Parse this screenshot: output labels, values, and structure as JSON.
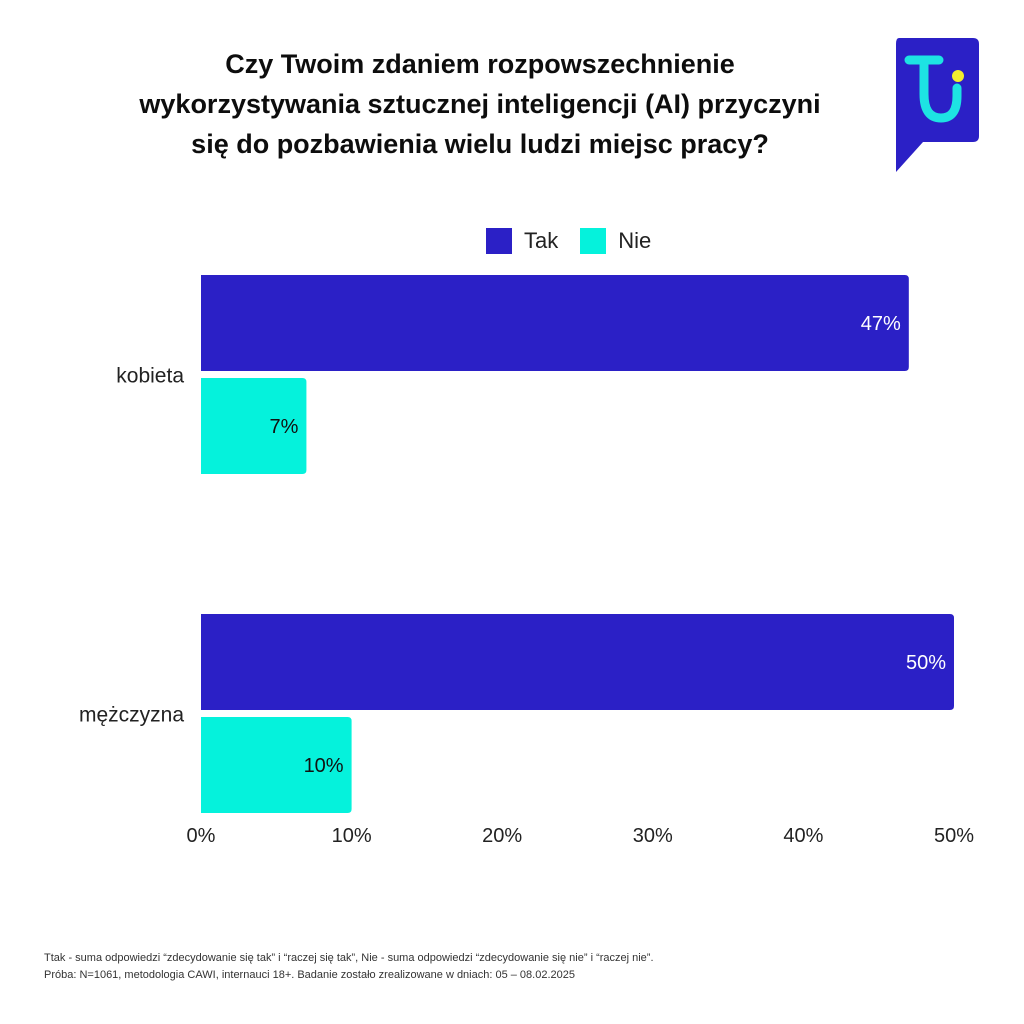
{
  "title_lines": [
    "Czy Twoim zdaniem rozpowszechnienie",
    "wykorzystywania sztucznej inteligencji (AI) przyczyni",
    "się do pozbawienia wielu ludzi miejsc pracy?"
  ],
  "colors": {
    "tak": "#2b20c6",
    "nie": "#05f2dc",
    "logo_bg": "#2b20c6",
    "logo_mark": "#1de3e3",
    "logo_dot": "#f2ee2e"
  },
  "legend": {
    "tak_label": "Tak",
    "nie_label": "Nie"
  },
  "chart_data": {
    "type": "bar",
    "orientation": "horizontal",
    "categories": [
      "kobieta",
      "mężczyzna"
    ],
    "series": [
      {
        "name": "Tak",
        "values": [
          47,
          50
        ],
        "labels": [
          "47%",
          "50%"
        ]
      },
      {
        "name": "Nie",
        "values": [
          7,
          10
        ],
        "labels": [
          "7%",
          "10%"
        ]
      }
    ],
    "xlim": [
      0,
      50
    ],
    "xticks": [
      "0%",
      "10%",
      "20%",
      "30%",
      "40%",
      "50%"
    ],
    "legend_position": "top-center"
  },
  "footnote": {
    "line1": "Ttak - suma odpowiedzi “zdecydowanie się tak” i “raczej się tak”, Nie - suma odpowiedzi “zdecydowanie się nie” i “raczej nie”.",
    "line2": "Próba: N=1061, metodologia CAWI, internauci 18+. Badanie zostało zrealizowane w dniach: 05 – 08.02.2025"
  }
}
